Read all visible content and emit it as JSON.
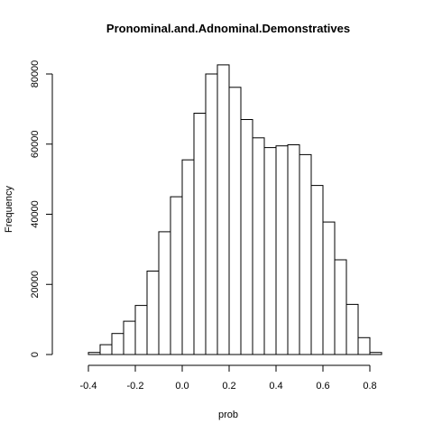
{
  "chart_data": {
    "type": "bar",
    "title": "Pronominal.and.Adnominal.Demonstratives",
    "xlabel": "prob",
    "ylabel": "Frequency",
    "xlim": [
      -0.5,
      0.9
    ],
    "ylim": [
      0,
      85000
    ],
    "x_ticks": [
      -0.4,
      -0.2,
      0.0,
      0.2,
      0.4,
      0.6,
      0.8
    ],
    "x_tick_labels": [
      "-0.4",
      "-0.2",
      "0.0",
      "0.2",
      "0.4",
      "0.6",
      "0.8"
    ],
    "y_ticks": [
      0,
      20000,
      40000,
      60000,
      80000
    ],
    "y_tick_labels": [
      "0",
      "20000",
      "40000",
      "60000",
      "80000"
    ],
    "bin_width": 0.05,
    "bins": [
      {
        "start": -0.4,
        "end": -0.35,
        "count": 600
      },
      {
        "start": -0.35,
        "end": -0.3,
        "count": 2800
      },
      {
        "start": -0.3,
        "end": -0.25,
        "count": 6000
      },
      {
        "start": -0.25,
        "end": -0.2,
        "count": 9500
      },
      {
        "start": -0.2,
        "end": -0.15,
        "count": 14000
      },
      {
        "start": -0.15,
        "end": -0.1,
        "count": 23800
      },
      {
        "start": -0.1,
        "end": -0.05,
        "count": 35000
      },
      {
        "start": -0.05,
        "end": 0.0,
        "count": 45000
      },
      {
        "start": 0.0,
        "end": 0.05,
        "count": 55500
      },
      {
        "start": 0.05,
        "end": 0.1,
        "count": 68800
      },
      {
        "start": 0.1,
        "end": 0.15,
        "count": 80000
      },
      {
        "start": 0.15,
        "end": 0.2,
        "count": 82600
      },
      {
        "start": 0.2,
        "end": 0.25,
        "count": 76200
      },
      {
        "start": 0.25,
        "end": 0.3,
        "count": 67000
      },
      {
        "start": 0.3,
        "end": 0.35,
        "count": 61800
      },
      {
        "start": 0.35,
        "end": 0.4,
        "count": 59000
      },
      {
        "start": 0.4,
        "end": 0.45,
        "count": 59500
      },
      {
        "start": 0.45,
        "end": 0.5,
        "count": 59800
      },
      {
        "start": 0.5,
        "end": 0.55,
        "count": 57000
      },
      {
        "start": 0.55,
        "end": 0.6,
        "count": 48200
      },
      {
        "start": 0.6,
        "end": 0.65,
        "count": 37800
      },
      {
        "start": 0.65,
        "end": 0.7,
        "count": 27000
      },
      {
        "start": 0.7,
        "end": 0.75,
        "count": 14300
      },
      {
        "start": 0.75,
        "end": 0.8,
        "count": 4800
      },
      {
        "start": 0.8,
        "end": 0.85,
        "count": 600
      }
    ],
    "grid": false,
    "legend": "none"
  }
}
